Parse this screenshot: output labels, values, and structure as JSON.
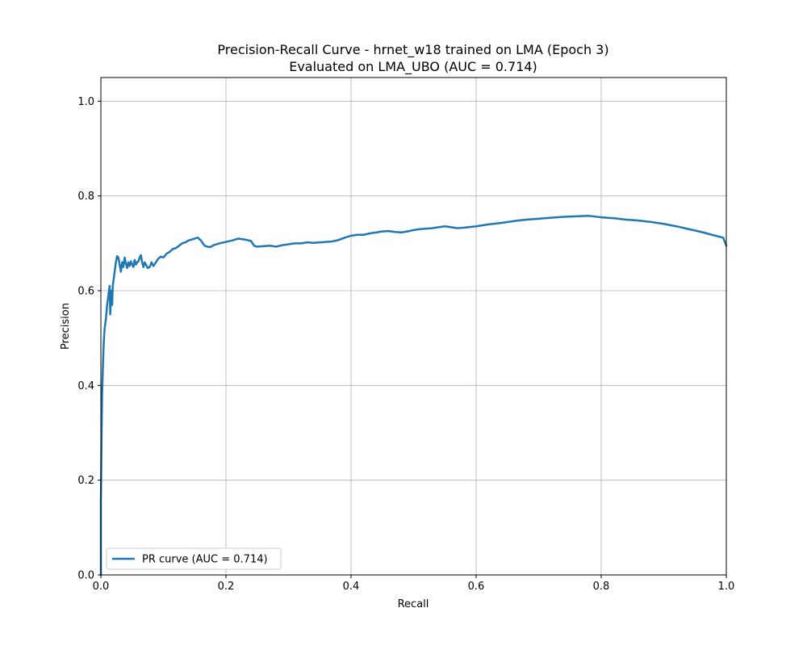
{
  "chart_data": {
    "type": "line",
    "title_line1": "Precision-Recall Curve - hrnet_w18 trained on LMA (Epoch 3)",
    "title_line2": "Evaluated on LMA_UBO (AUC = 0.714)",
    "xlabel": "Recall",
    "ylabel": "Precision",
    "xlim": [
      0.0,
      1.0
    ],
    "ylim": [
      0.0,
      1.05
    ],
    "xticks": [
      "0.0",
      "0.2",
      "0.4",
      "0.6",
      "0.8",
      "1.0"
    ],
    "yticks": [
      "0.0",
      "0.2",
      "0.4",
      "0.6",
      "0.8",
      "1.0"
    ],
    "grid": true,
    "legend_position": "lower-left",
    "series": [
      {
        "name": "PR curve (AUC = 0.714)",
        "color": "#1f77b4",
        "x": [
          0.0,
          0.0,
          0.001,
          0.002,
          0.003,
          0.004,
          0.005,
          0.006,
          0.008,
          0.01,
          0.012,
          0.014,
          0.015,
          0.016,
          0.017,
          0.018,
          0.019,
          0.02,
          0.022,
          0.024,
          0.026,
          0.028,
          0.03,
          0.032,
          0.034,
          0.036,
          0.038,
          0.04,
          0.042,
          0.044,
          0.046,
          0.048,
          0.05,
          0.052,
          0.054,
          0.056,
          0.058,
          0.06,
          0.062,
          0.064,
          0.066,
          0.068,
          0.07,
          0.072,
          0.075,
          0.078,
          0.081,
          0.084,
          0.088,
          0.092,
          0.096,
          0.1,
          0.105,
          0.11,
          0.115,
          0.12,
          0.125,
          0.13,
          0.135,
          0.14,
          0.145,
          0.15,
          0.155,
          0.16,
          0.163,
          0.166,
          0.17,
          0.175,
          0.18,
          0.19,
          0.2,
          0.21,
          0.22,
          0.23,
          0.24,
          0.245,
          0.25,
          0.26,
          0.27,
          0.28,
          0.29,
          0.3,
          0.31,
          0.32,
          0.33,
          0.34,
          0.35,
          0.36,
          0.37,
          0.38,
          0.39,
          0.4,
          0.41,
          0.42,
          0.43,
          0.44,
          0.45,
          0.46,
          0.47,
          0.48,
          0.49,
          0.5,
          0.51,
          0.52,
          0.53,
          0.54,
          0.55,
          0.56,
          0.57,
          0.58,
          0.6,
          0.62,
          0.64,
          0.66,
          0.68,
          0.7,
          0.72,
          0.74,
          0.76,
          0.78,
          0.8,
          0.82,
          0.84,
          0.86,
          0.88,
          0.9,
          0.92,
          0.94,
          0.96,
          0.98,
          0.995,
          1.0
        ],
        "y": [
          0.0,
          0.15,
          0.28,
          0.38,
          0.43,
          0.47,
          0.5,
          0.52,
          0.54,
          0.57,
          0.59,
          0.61,
          0.55,
          0.58,
          0.6,
          0.57,
          0.61,
          0.62,
          0.64,
          0.66,
          0.673,
          0.67,
          0.655,
          0.64,
          0.66,
          0.65,
          0.67,
          0.658,
          0.648,
          0.66,
          0.652,
          0.662,
          0.655,
          0.65,
          0.665,
          0.655,
          0.66,
          0.662,
          0.67,
          0.675,
          0.66,
          0.65,
          0.66,
          0.655,
          0.648,
          0.65,
          0.66,
          0.652,
          0.66,
          0.668,
          0.672,
          0.67,
          0.678,
          0.682,
          0.688,
          0.69,
          0.695,
          0.7,
          0.702,
          0.706,
          0.708,
          0.71,
          0.712,
          0.706,
          0.7,
          0.695,
          0.693,
          0.692,
          0.696,
          0.7,
          0.703,
          0.706,
          0.71,
          0.708,
          0.705,
          0.695,
          0.693,
          0.694,
          0.695,
          0.693,
          0.696,
          0.698,
          0.7,
          0.7,
          0.702,
          0.701,
          0.702,
          0.703,
          0.704,
          0.707,
          0.712,
          0.716,
          0.718,
          0.718,
          0.721,
          0.723,
          0.725,
          0.726,
          0.724,
          0.723,
          0.725,
          0.728,
          0.73,
          0.731,
          0.732,
          0.734,
          0.736,
          0.734,
          0.732,
          0.733,
          0.736,
          0.74,
          0.743,
          0.747,
          0.75,
          0.752,
          0.754,
          0.756,
          0.757,
          0.758,
          0.755,
          0.753,
          0.75,
          0.748,
          0.745,
          0.741,
          0.736,
          0.73,
          0.724,
          0.717,
          0.712,
          0.695
        ]
      }
    ]
  }
}
